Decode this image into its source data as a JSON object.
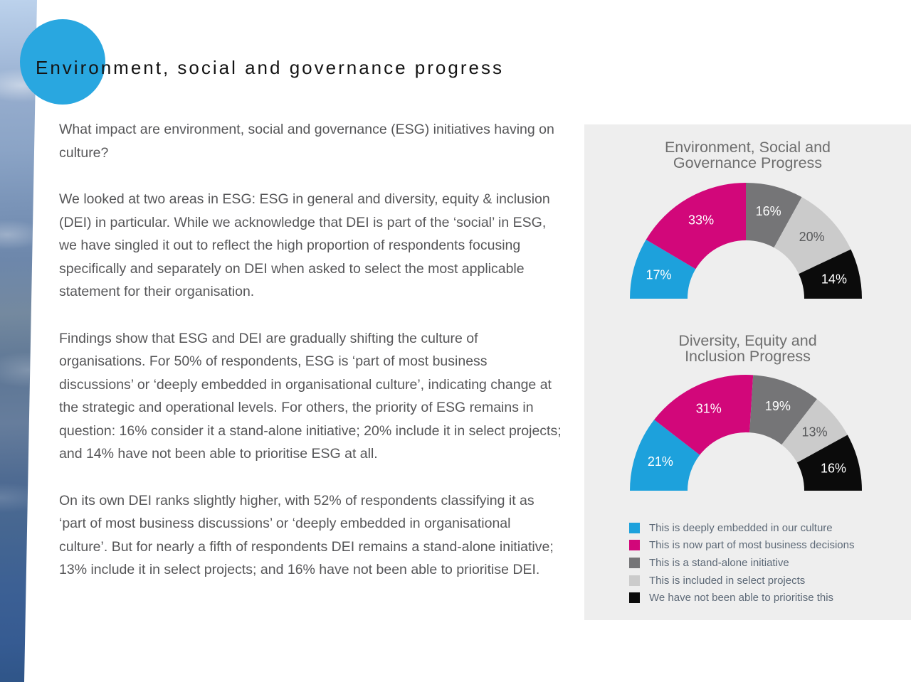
{
  "header": {
    "title": "Environment, social and governance progress"
  },
  "main": {
    "paragraphs": [
      "What impact are environment, social and governance (ESG) initiatives having on culture?",
      "We looked at two areas in ESG: ESG in general and diversity, equity & inclusion (DEI) in particular. While we acknowledge that DEI is part of the ‘social’ in ESG, we have singled it out to reflect the high proportion of respondents focusing specifically and separately on DEI when asked to select the most applicable statement for their organisation.",
      "Findings show that ESG and DEI are gradually shifting the culture of organisations. For 50% of respondents, ESG is ‘part of most business discussions’ or ‘deeply embedded in organisational culture’, indicating change at the strategic and operational levels. For others, the priority of ESG remains in question: 16% consider it a stand-alone initiative; 20% include it in select projects; and 14% have not been able to prioritise ESG at all.",
      "On its own DEI ranks slightly higher, with 52% of respondents classifying it as ‘part of most business discussions’ or ‘deeply embedded in organisational culture’. But for nearly a fifth of respondents DEI remains a stand-alone initiative; 13% include it in select projects; and 16% have not been able to prioritise DEI."
    ]
  },
  "palette": {
    "accent_circle": "#29a7e0",
    "panel_bg": "#eeeeee",
    "segment_colors": [
      "#1da1dc",
      "#d2077a",
      "#757577",
      "#cbcbcb",
      "#0b0b0b"
    ],
    "segment_label_colors": [
      "#ffffff",
      "#ffffff",
      "#ffffff",
      "#58595b",
      "#ffffff"
    ]
  },
  "chart_data": [
    {
      "type": "donut-gauge",
      "title": "Environment, Social and\nGovernance Progress",
      "categories": [
        "This is deeply embedded in our culture",
        "This is now part of most business decisions",
        "This is a stand-alone initiative",
        "This is included in select projects",
        "We have not been able to prioritise this"
      ],
      "values": [
        17,
        33,
        16,
        20,
        14
      ],
      "labels": [
        "17%",
        "33%",
        "16%",
        "20%",
        "14%"
      ],
      "layout": "half-donut, 180 degrees, sweep left-to-right clockwise"
    },
    {
      "type": "donut-gauge",
      "title": "Diversity, Equity and\nInclusion Progress",
      "categories": [
        "This is deeply embedded in our culture",
        "This is now part of most business decisions",
        "This is a stand-alone initiative",
        "This is included in select projects",
        "We have not been able to prioritise this"
      ],
      "values": [
        21,
        31,
        19,
        13,
        16
      ],
      "labels": [
        "21%",
        "31%",
        "19%",
        "13%",
        "16%"
      ],
      "layout": "half-donut, 180 degrees, sweep left-to-right clockwise"
    }
  ],
  "legend": {
    "items": [
      {
        "color": "#1da1dc",
        "label": "This is deeply embedded in our culture"
      },
      {
        "color": "#d2077a",
        "label": "This is now part of most business decisions"
      },
      {
        "color": "#757577",
        "label": "This is a stand-alone initiative"
      },
      {
        "color": "#cbcbcb",
        "label": "This is included in select projects"
      },
      {
        "color": "#0b0b0b",
        "label": "We have not been able to prioritise this"
      }
    ]
  }
}
